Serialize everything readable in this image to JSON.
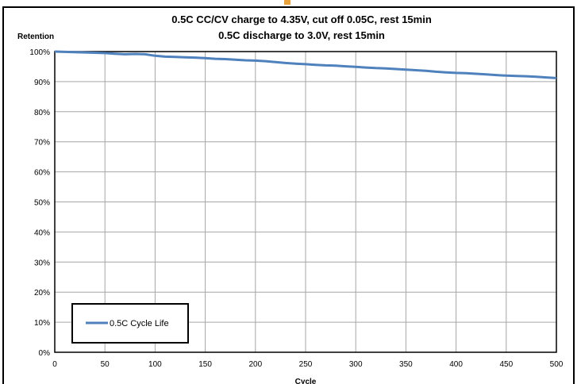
{
  "chart_data": {
    "type": "line",
    "title_lines": [
      "0.5C CC/CV charge to 4.35V, cut off 0.05C, rest 15min",
      "0.5C discharge to 3.0V, rest 15min"
    ],
    "ylabel": "Retention",
    "xlabel": "Cycle",
    "xlim": [
      0,
      500
    ],
    "ylim": [
      0,
      100
    ],
    "x_ticks": [
      "0",
      "50",
      "100",
      "150",
      "200",
      "250",
      "300",
      "350",
      "400",
      "450",
      "500"
    ],
    "y_ticks": [
      "0%",
      "10%",
      "20%",
      "30%",
      "40%",
      "50%",
      "60%",
      "70%",
      "80%",
      "90%",
      "100%"
    ],
    "grid": true,
    "legend_position": "bottom-left",
    "series": [
      {
        "name": "0.5C Cycle Life",
        "color": "#4f81bd",
        "x": [
          0,
          10,
          20,
          30,
          40,
          50,
          60,
          70,
          80,
          90,
          100,
          110,
          120,
          130,
          140,
          150,
          160,
          170,
          180,
          190,
          200,
          210,
          220,
          230,
          240,
          250,
          260,
          270,
          280,
          290,
          300,
          310,
          320,
          330,
          340,
          350,
          360,
          370,
          380,
          390,
          400,
          410,
          420,
          430,
          440,
          450,
          460,
          470,
          480,
          490,
          500
        ],
        "y": [
          100.0,
          99.9,
          99.8,
          99.7,
          99.6,
          99.5,
          99.3,
          99.1,
          99.2,
          99.1,
          98.6,
          98.3,
          98.2,
          98.1,
          98.0,
          97.8,
          97.6,
          97.5,
          97.3,
          97.1,
          97.0,
          96.8,
          96.5,
          96.2,
          96.0,
          95.8,
          95.6,
          95.4,
          95.3,
          95.1,
          94.9,
          94.7,
          94.5,
          94.4,
          94.2,
          94.0,
          93.8,
          93.6,
          93.3,
          93.1,
          92.9,
          92.8,
          92.6,
          92.4,
          92.2,
          92.0,
          91.9,
          91.8,
          91.6,
          91.4,
          91.2
        ]
      }
    ]
  }
}
